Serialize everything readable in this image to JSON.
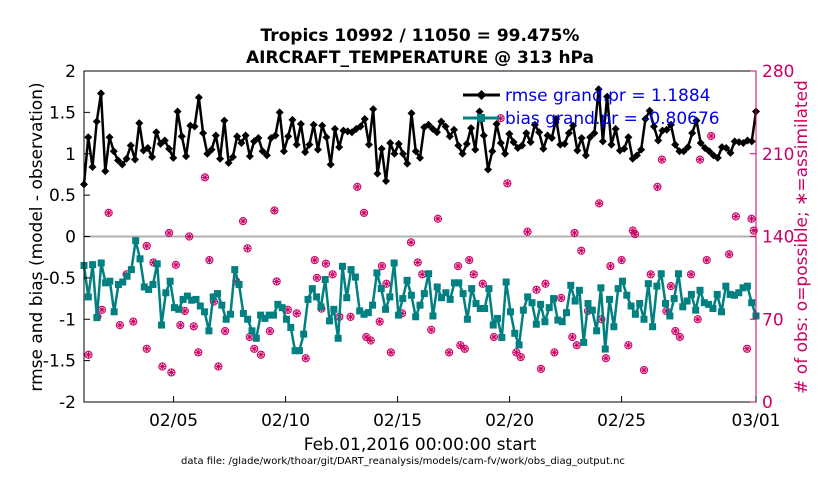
{
  "chart_data": {
    "type": "line",
    "title_line1": "Tropics 10992 / 11050 = 99.475%",
    "title_line2": "AIRCRAFT_TEMPERATURE @ 313 hPa",
    "ylabel_left": "rmse and bias (model - observation)",
    "ylabel_right": "# of obs: o=possible; ∗=assimilated",
    "xlabel": "Feb.01,2016 00:00:00 start",
    "footer": "data file: /glade/work/thoar/git/DART_reanalysis/models/cam-fv/work/obs_diag_output.nc",
    "xlim": [
      1,
      31
    ],
    "ylim_left": [
      -2,
      2
    ],
    "ylim_right": [
      0,
      280
    ],
    "x_ticks": [
      {
        "x": 5,
        "label": "02/05"
      },
      {
        "x": 10,
        "label": "02/10"
      },
      {
        "x": 15,
        "label": "02/15"
      },
      {
        "x": 20,
        "label": "02/20"
      },
      {
        "x": 25,
        "label": "02/25"
      },
      {
        "x": 31,
        "label": "03/01"
      }
    ],
    "y_ticks_left": [
      "2",
      "1.5",
      "1",
      "0.5",
      "0",
      "-0.5",
      "-1",
      "-1.5",
      "-2"
    ],
    "y_ticks_right": [
      "280",
      "210",
      "140",
      "70",
      "0"
    ],
    "colors": {
      "rmse": "#000000",
      "bias": "#008080",
      "obs": "#cc0066",
      "zero": "#b0b0b0",
      "legend_text": "#0000ee"
    },
    "legend": [
      {
        "label": "rmse grand.pr = 1.1884"
      },
      {
        "label": "bias grand.pr = -0.80676"
      }
    ],
    "rmse": [
      0.63,
      1.2,
      0.84,
      1.39,
      1.73,
      0.79,
      1.2,
      1.03,
      0.92,
      0.87,
      0.94,
      1.1,
      0.93,
      1.37,
      1.04,
      1.07,
      0.96,
      1.26,
      1.12,
      1.16,
      1.06,
      0.95,
      1.51,
      1.21,
      0.97,
      1.34,
      1.33,
      1.68,
      1.25,
      1.0,
      1.05,
      1.22,
      0.94,
      1.4,
      0.89,
      0.96,
      1.21,
      1.13,
      1.22,
      0.97,
      1.15,
      1.19,
      1.03,
      0.98,
      1.19,
      1.22,
      1.5,
      1.03,
      1.21,
      1.41,
      1.11,
      1.36,
      1.02,
      1.11,
      1.35,
      1.05,
      1.34,
      1.2,
      0.87,
      1.3,
      1.08,
      1.28,
      1.27,
      1.26,
      1.3,
      1.33,
      1.42,
      1.11,
      1.54,
      0.76,
      1.06,
      0.67,
      1.13,
      1.0,
      1.12,
      1.0,
      0.88,
      1.49,
      1.03,
      0.95,
      1.32,
      1.35,
      1.3,
      1.26,
      1.39,
      1.33,
      1.21,
      1.29,
      1.1,
      1.0,
      1.12,
      1.31,
      1.05,
      1.51,
      1.22,
      0.81,
      1.03,
      1.36,
      1.13,
      1.0,
      1.24,
      1.14,
      1.07,
      1.1,
      1.25,
      1.14,
      1.35,
      1.26,
      1.06,
      1.22,
      1.19,
      1.42,
      1.11,
      1.12,
      1.25,
      1.34,
      1.04,
      1.19,
      0.98,
      1.2,
      1.25,
      1.78,
      1.15,
      1.69,
      1.11,
      1.3,
      1.04,
      1.06,
      1.2,
      0.94,
      0.98,
      1.05,
      1.42,
      1.52,
      1.33,
      1.16,
      1.28,
      1.29,
      1.35,
      1.11,
      1.03,
      1.03,
      1.08,
      1.25,
      1.4,
      1.13,
      1.07,
      1.03,
      0.98,
      0.95,
      1.08,
      1.07,
      1.01,
      1.15,
      1.14,
      1.13,
      1.16,
      1.15,
      1.51
    ],
    "bias": [
      -0.35,
      -0.73,
      -0.34,
      -0.98,
      -0.32,
      -0.56,
      -0.54,
      -0.91,
      -0.58,
      -0.55,
      -0.48,
      -0.4,
      -0.05,
      -0.27,
      -0.61,
      -0.64,
      -0.58,
      -0.33,
      -1.07,
      -0.68,
      -0.54,
      -0.86,
      -0.88,
      -0.76,
      -0.72,
      -0.77,
      -0.76,
      -0.84,
      -0.91,
      -1.14,
      -0.73,
      -0.69,
      -0.83,
      -1.0,
      -0.94,
      -0.4,
      -0.58,
      -0.93,
      -1.0,
      -1.14,
      -1.23,
      -0.95,
      -0.99,
      -0.95,
      -0.95,
      -0.82,
      -0.86,
      -1.0,
      -1.1,
      -1.38,
      -1.38,
      -1.18,
      -0.76,
      -0.63,
      -0.73,
      -0.85,
      -0.52,
      -1.02,
      -0.88,
      -1.23,
      -0.36,
      -0.74,
      -0.4,
      -0.49,
      -0.9,
      -0.94,
      -0.92,
      -0.83,
      -0.44,
      -0.63,
      -0.88,
      -0.73,
      -0.32,
      -0.95,
      -0.75,
      -0.53,
      -0.71,
      -0.97,
      -0.83,
      -0.69,
      -0.45,
      -0.96,
      -0.61,
      -0.74,
      -0.68,
      -0.76,
      -0.56,
      -0.56,
      -0.69,
      -1.0,
      -0.63,
      -0.81,
      -0.87,
      -0.87,
      -0.63,
      -1.07,
      -0.99,
      -1.22,
      -0.55,
      -0.91,
      -1.17,
      -1.31,
      -0.89,
      -0.73,
      -0.8,
      -1.06,
      -0.82,
      -1.03,
      -0.86,
      -0.75,
      -1.01,
      -1.03,
      -0.92,
      -0.59,
      -0.78,
      -0.65,
      -1.28,
      -0.81,
      -0.89,
      -1.14,
      -0.62,
      -1.36,
      -0.76,
      -1.09,
      -0.63,
      -0.54,
      -0.71,
      -0.84,
      -0.94,
      -0.81,
      -1.0,
      -0.57,
      -1.09,
      -0.6,
      -0.45,
      -0.81,
      -0.96,
      -0.75,
      -0.45,
      -0.85,
      -0.78,
      -0.7,
      -0.89,
      -0.65,
      -0.8,
      -0.82,
      -0.87,
      -0.7,
      -0.91,
      -0.6,
      -0.7,
      -0.71,
      -0.68,
      -0.62,
      -0.6,
      -0.8,
      -0.96
    ],
    "obs_counts": [
      [
        1.2,
        40
      ],
      [
        1.6,
        72
      ],
      [
        1.8,
        78
      ],
      [
        2.1,
        160
      ],
      [
        2.6,
        65
      ],
      [
        2.9,
        108
      ],
      [
        3.2,
        68
      ],
      [
        3.8,
        132
      ],
      [
        3.8,
        45
      ],
      [
        4.1,
        118
      ],
      [
        4.5,
        30
      ],
      [
        4.8,
        143
      ],
      [
        4.9,
        25
      ],
      [
        5.1,
        116
      ],
      [
        5.3,
        65
      ],
      [
        5.5,
        77
      ],
      [
        5.7,
        140
      ],
      [
        5.9,
        64
      ],
      [
        6.1,
        42
      ],
      [
        6.4,
        190
      ],
      [
        6.6,
        120
      ],
      [
        6.8,
        85
      ],
      [
        7.0,
        30
      ],
      [
        7.3,
        60
      ],
      [
        7.8,
        102
      ],
      [
        8.1,
        153
      ],
      [
        8.3,
        130
      ],
      [
        8.4,
        55
      ],
      [
        8.6,
        45
      ],
      [
        8.9,
        40
      ],
      [
        9.3,
        60
      ],
      [
        9.5,
        162
      ],
      [
        9.6,
        102
      ],
      [
        10.1,
        78
      ],
      [
        10.5,
        75
      ],
      [
        10.9,
        37
      ],
      [
        11.3,
        120
      ],
      [
        11.4,
        105
      ],
      [
        11.6,
        79
      ],
      [
        11.8,
        117
      ],
      [
        12.1,
        108
      ],
      [
        12.4,
        72
      ],
      [
        12.9,
        72
      ],
      [
        13.2,
        182
      ],
      [
        13.5,
        160
      ],
      [
        13.6,
        55
      ],
      [
        13.8,
        52
      ],
      [
        14.2,
        68
      ],
      [
        14.3,
        115
      ],
      [
        14.5,
        100
      ],
      [
        14.7,
        42
      ],
      [
        15.2,
        75
      ],
      [
        15.6,
        135
      ],
      [
        15.9,
        118
      ],
      [
        16.1,
        108
      ],
      [
        16.5,
        61
      ],
      [
        16.8,
        155
      ],
      [
        17.3,
        42
      ],
      [
        17.7,
        115
      ],
      [
        17.8,
        48
      ],
      [
        18.0,
        45
      ],
      [
        18.2,
        120
      ],
      [
        18.4,
        108
      ],
      [
        18.8,
        100
      ],
      [
        19.3,
        55
      ],
      [
        19.6,
        240
      ],
      [
        19.9,
        185
      ],
      [
        20.3,
        42
      ],
      [
        20.5,
        38
      ],
      [
        20.8,
        144
      ],
      [
        21.2,
        95
      ],
      [
        21.4,
        28
      ],
      [
        21.6,
        100
      ],
      [
        22.0,
        42
      ],
      [
        22.3,
        88
      ],
      [
        22.8,
        55
      ],
      [
        22.9,
        143
      ],
      [
        23.0,
        48
      ],
      [
        23.2,
        128
      ],
      [
        23.5,
        77
      ],
      [
        24.0,
        168
      ],
      [
        24.1,
        70
      ],
      [
        24.3,
        37
      ],
      [
        24.5,
        115
      ],
      [
        25.0,
        120
      ],
      [
        25.3,
        48
      ],
      [
        25.5,
        145
      ],
      [
        25.6,
        142
      ],
      [
        26.0,
        27
      ],
      [
        26.3,
        108
      ],
      [
        26.6,
        182
      ],
      [
        26.8,
        205
      ],
      [
        27.0,
        77
      ],
      [
        27.2,
        98
      ],
      [
        27.4,
        60
      ],
      [
        27.6,
        55
      ],
      [
        28.1,
        108
      ],
      [
        28.4,
        70
      ],
      [
        28.5,
        205
      ],
      [
        28.8,
        120
      ],
      [
        29.0,
        225
      ],
      [
        29.8,
        125
      ],
      [
        30.1,
        157
      ],
      [
        30.6,
        45
      ],
      [
        30.8,
        155
      ],
      [
        30.9,
        145
      ]
    ]
  }
}
